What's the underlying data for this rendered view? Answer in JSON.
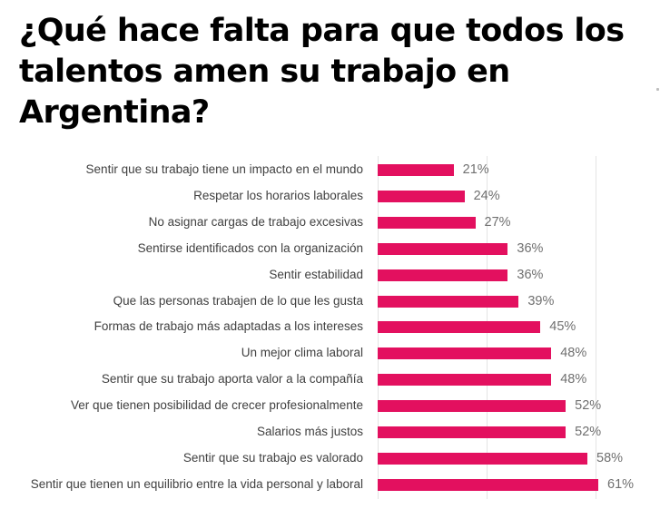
{
  "page": {
    "title": "¿Qué hace falta para que todos los talentos amen su trabajo en Argentina?"
  },
  "chart_data": {
    "type": "bar",
    "orientation": "horizontal",
    "title": "¿Qué hace falta para que todos los talentos amen su trabajo en Argentina?",
    "xlabel": "",
    "ylabel": "",
    "xlim": [
      0,
      65
    ],
    "grid": true,
    "bar_color": "#e3105f",
    "categories": [
      "Sentir que su trabajo tiene un impacto en el mundo",
      "Respetar los horarios laborales",
      "No asignar cargas de trabajo excesivas",
      "Sentirse identificados con la organización",
      "Sentir estabilidad",
      "Que las personas trabajen de lo que les gusta",
      "Formas de trabajo más adaptadas a los intereses",
      "Un mejor clima laboral",
      "Sentir que su trabajo aporta valor a la compañía",
      "Ver que tienen posibilidad de crecer profesionalmente",
      "Salarios más justos",
      "Sentir que su trabajo es valorado",
      "Sentir que tienen un equilibrio entre la vida personal y laboral"
    ],
    "values": [
      21,
      24,
      27,
      36,
      36,
      39,
      45,
      48,
      48,
      52,
      52,
      58,
      61
    ],
    "value_labels": [
      "21%",
      "24%",
      "27%",
      "36%",
      "36%",
      "39%",
      "45%",
      "48%",
      "48%",
      "52%",
      "52%",
      "58%",
      "61%"
    ]
  }
}
